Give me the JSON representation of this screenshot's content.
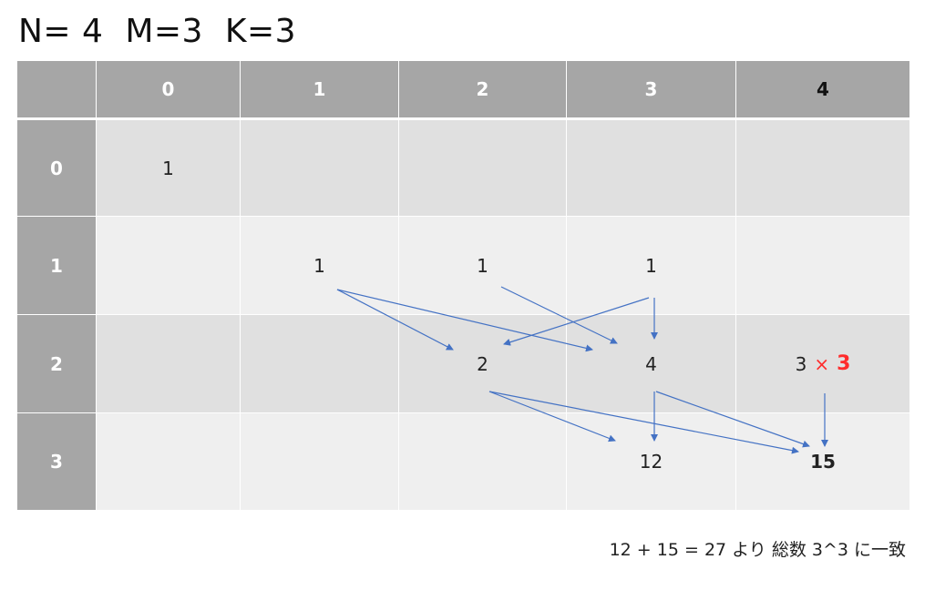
{
  "title": "N= 4  M=3  K=3",
  "table": {
    "col_headers": [
      "",
      "0",
      "1",
      "2",
      "3",
      "4"
    ],
    "rows": [
      {
        "header": "0",
        "cells": [
          "1",
          "",
          "",
          "",
          ""
        ]
      },
      {
        "header": "1",
        "cells": [
          "",
          "1",
          "1",
          "1",
          ""
        ]
      },
      {
        "header": "2",
        "cells": [
          "",
          "",
          "2",
          "4",
          ""
        ]
      },
      {
        "header": "3",
        "cells": [
          "",
          "",
          "",
          "12",
          "15"
        ]
      }
    ],
    "special_cell": {
      "value": "3",
      "times": "×",
      "factor": "3"
    }
  },
  "note": "12 + 15 = 27 より 総数 3^3 に一致",
  "colors": {
    "header": "#a6a6a6",
    "row_dark": "#e0e0e0",
    "row_light": "#efefef",
    "arrow": "#4472c4",
    "accent": "#ff2b2b"
  }
}
